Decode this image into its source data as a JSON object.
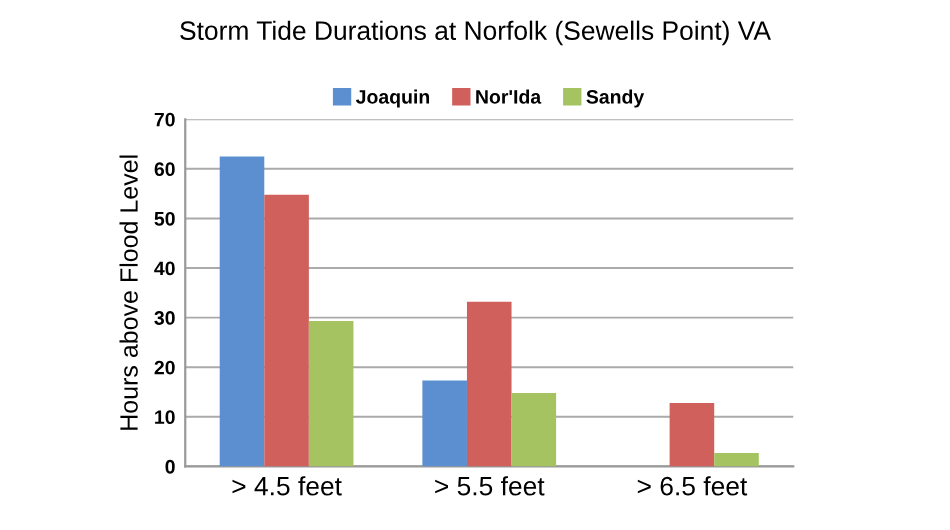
{
  "chart_data": {
    "type": "bar",
    "title": "Storm Tide Durations at Norfolk (Sewells Point) VA",
    "ylabel": "Hours above Flood Level",
    "categories": [
      "> 4.5 feet",
      "> 5.5 feet",
      "> 6.5 feet"
    ],
    "series": [
      {
        "name": "Joaquin",
        "color": "#5b8fd0",
        "values": [
          62.5,
          17.3,
          null
        ]
      },
      {
        "name": "Nor'Ida",
        "color": "#d0605c",
        "values": [
          54.8,
          33.2,
          12.8
        ]
      },
      {
        "name": "Sandy",
        "color": "#a5c461",
        "values": [
          29.3,
          14.8,
          2.7
        ]
      }
    ],
    "ylim": [
      0,
      70
    ],
    "yticks": [
      0,
      10,
      20,
      30,
      40,
      50,
      60,
      70
    ],
    "grid": "y",
    "legend": "top"
  }
}
